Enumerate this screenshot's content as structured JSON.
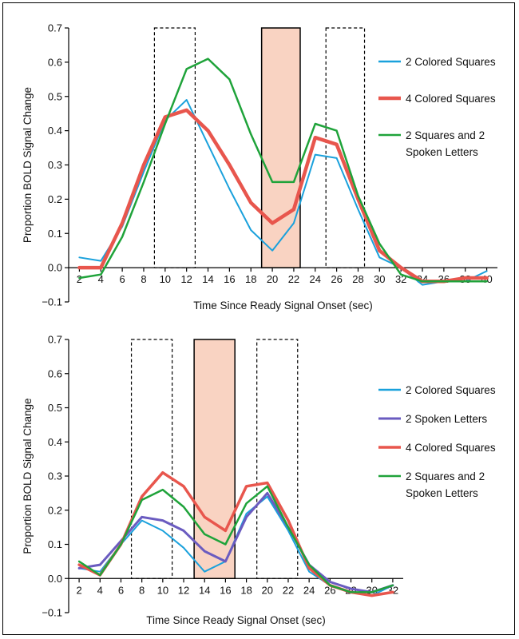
{
  "chart_data": [
    {
      "type": "line",
      "xlabel": "Time Since Ready Signal Onset (sec)",
      "ylabel": "Proportion BOLD Signal Change",
      "xlim": [
        1,
        41
      ],
      "ylim": [
        -0.1,
        0.7
      ],
      "yticks": [
        "0.7",
        "0.6",
        "0.5",
        "0.4",
        "0.3",
        "0.2",
        "0.1",
        "0.0",
        "−0.1"
      ],
      "ytick_values": [
        0.7,
        0.6,
        0.5,
        0.4,
        0.3,
        0.2,
        0.1,
        0.0,
        -0.1
      ],
      "xticks": [
        "2",
        "4",
        "6",
        "8",
        "10",
        "12",
        "14",
        "16",
        "18",
        "20",
        "22",
        "24",
        "26",
        "28",
        "30",
        "32",
        "34",
        "36",
        "38",
        "40"
      ],
      "xtick_values": [
        2,
        4,
        6,
        8,
        10,
        12,
        14,
        16,
        18,
        20,
        22,
        24,
        26,
        28,
        30,
        32,
        34,
        36,
        38,
        40
      ],
      "dashed_boxes": [
        [
          9,
          12.8
        ],
        [
          25,
          28.6
        ]
      ],
      "shaded_box": [
        19,
        22.6
      ],
      "box_top": 0.7,
      "legend_position": "right",
      "x": [
        2,
        4,
        6,
        8,
        10,
        12,
        14,
        16,
        18,
        20,
        22,
        24,
        26,
        28,
        30,
        32,
        34,
        36,
        38,
        40
      ],
      "series": [
        {
          "name": "2 Colored Squares",
          "color": "#1aa1dc",
          "width": 2,
          "values": [
            0.03,
            0.02,
            0.12,
            0.28,
            0.43,
            0.49,
            0.36,
            0.23,
            0.11,
            0.05,
            0.13,
            0.33,
            0.32,
            0.17,
            0.03,
            0.0,
            -0.05,
            -0.04,
            -0.04,
            -0.01
          ]
        },
        {
          "name": "4 Colored Squares",
          "color": "#e8564d",
          "width": 4.5,
          "values": [
            0.0,
            0.0,
            0.13,
            0.3,
            0.44,
            0.46,
            0.4,
            0.3,
            0.19,
            0.13,
            0.17,
            0.38,
            0.36,
            0.2,
            0.05,
            0.0,
            -0.04,
            -0.04,
            -0.03,
            -0.03
          ]
        },
        {
          "name": "2 Squares and 2",
          "name2": "Spoken Letters",
          "color": "#1fa33a",
          "width": 2.5,
          "values": [
            -0.03,
            -0.02,
            0.09,
            0.25,
            0.42,
            0.58,
            0.61,
            0.55,
            0.39,
            0.25,
            0.25,
            0.42,
            0.4,
            0.21,
            0.07,
            -0.02,
            -0.04,
            -0.04,
            -0.04,
            -0.04
          ]
        }
      ]
    },
    {
      "type": "line",
      "xlabel": "Time Since Ready Signal Onset (sec)",
      "ylabel": "Proportion BOLD Signal Change",
      "xlim": [
        1,
        33
      ],
      "ylim": [
        -0.1,
        0.7
      ],
      "yticks": [
        "0.7",
        "0.6",
        "0.5",
        "0.4",
        "0.3",
        "0.2",
        "0.1",
        "0.0",
        "−0.1"
      ],
      "ytick_values": [
        0.7,
        0.6,
        0.5,
        0.4,
        0.3,
        0.2,
        0.1,
        0.0,
        -0.1
      ],
      "xticks": [
        "2",
        "4",
        "6",
        "8",
        "10",
        "12",
        "14",
        "16",
        "18",
        "20",
        "22",
        "24",
        "26",
        "28",
        "30",
        "32"
      ],
      "xtick_values": [
        2,
        4,
        6,
        8,
        10,
        12,
        14,
        16,
        18,
        20,
        22,
        24,
        26,
        28,
        30,
        32
      ],
      "dashed_boxes": [
        [
          7,
          10.9
        ],
        [
          19,
          22.9
        ]
      ],
      "shaded_box": [
        13,
        16.9
      ],
      "box_top": 0.7,
      "legend_position": "right",
      "x": [
        2,
        4,
        6,
        8,
        10,
        12,
        14,
        16,
        18,
        20,
        22,
        24,
        26,
        28,
        30,
        32
      ],
      "series": [
        {
          "name": "2 Colored Squares",
          "color": "#1aa1dc",
          "width": 2,
          "values": [
            0.03,
            0.02,
            0.1,
            0.17,
            0.14,
            0.09,
            0.02,
            0.05,
            0.19,
            0.24,
            0.14,
            0.02,
            -0.02,
            -0.04,
            -0.05,
            -0.02
          ]
        },
        {
          "name": "2 Spoken Letters",
          "color": "#6a5bc0",
          "width": 3,
          "values": [
            0.03,
            0.04,
            0.11,
            0.18,
            0.17,
            0.14,
            0.08,
            0.05,
            0.18,
            0.25,
            0.15,
            0.04,
            -0.01,
            -0.03,
            -0.04,
            -0.02
          ]
        },
        {
          "name": "4 Colored Squares",
          "color": "#e8564d",
          "width": 3.5,
          "values": [
            0.04,
            0.01,
            0.1,
            0.24,
            0.31,
            0.27,
            0.18,
            0.14,
            0.27,
            0.28,
            0.17,
            0.03,
            -0.02,
            -0.04,
            -0.05,
            -0.04
          ]
        },
        {
          "name": "2 Squares and 2",
          "name2": "Spoken Letters",
          "color": "#1fa33a",
          "width": 2.5,
          "values": [
            0.05,
            0.01,
            0.1,
            0.23,
            0.26,
            0.21,
            0.13,
            0.1,
            0.22,
            0.27,
            0.15,
            0.04,
            -0.02,
            -0.04,
            -0.04,
            -0.02
          ]
        }
      ]
    }
  ]
}
